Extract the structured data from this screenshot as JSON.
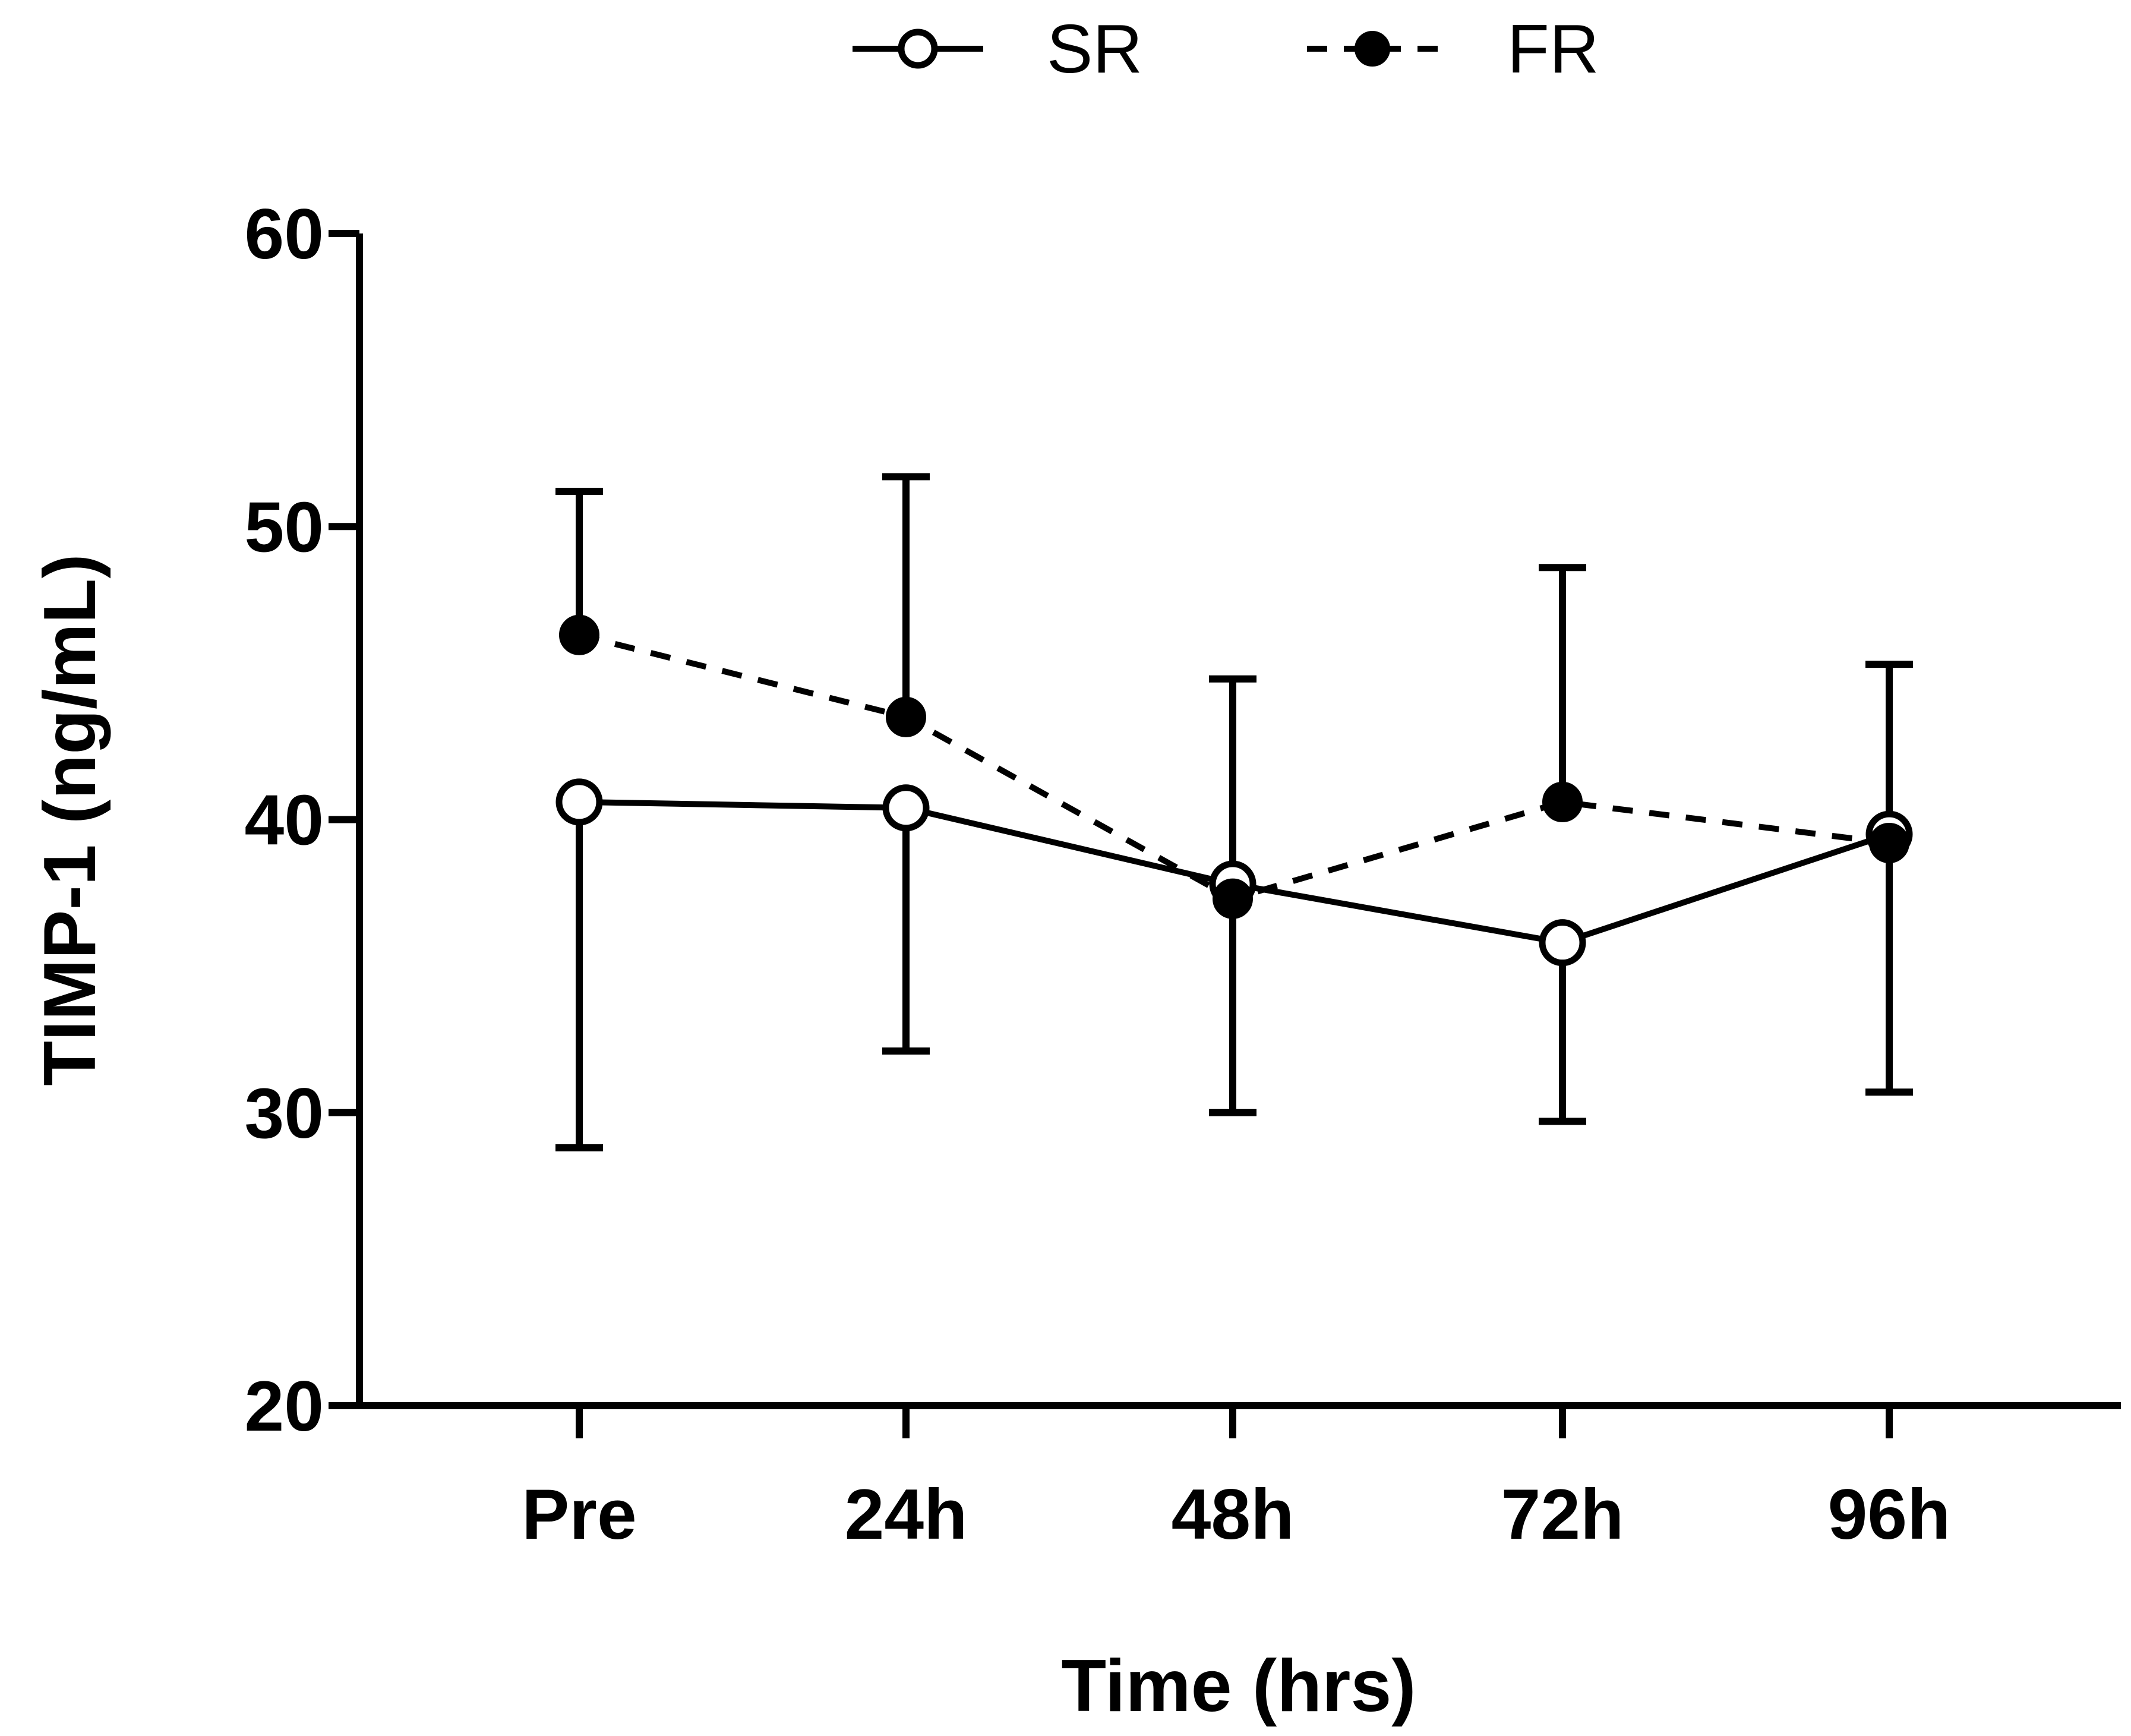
{
  "chart_data": {
    "type": "line",
    "title": "",
    "xlabel": "Time (hrs)",
    "ylabel": "TIMP-1 (ng/mL)",
    "ylim": [
      20,
      60
    ],
    "yticks": [
      20,
      30,
      40,
      50,
      60
    ],
    "categories": [
      "Pre",
      "24h",
      "48h",
      "72h",
      "96h"
    ],
    "legend_position": "top-center",
    "grid": false,
    "series": [
      {
        "name": "SR",
        "style": "solid",
        "marker": "open-circle",
        "values": [
          40.6,
          40.4,
          37.8,
          35.8,
          39.5
        ],
        "error_upper": [
          null,
          null,
          null,
          null,
          null
        ],
        "error_lower": [
          28.8,
          32.1,
          30.0,
          29.7,
          30.7
        ]
      },
      {
        "name": "FR",
        "style": "dashed",
        "marker": "filled-circle",
        "values": [
          46.3,
          43.5,
          37.3,
          40.6,
          39.2
        ],
        "error_upper": [
          51.2,
          51.7,
          44.8,
          48.6,
          45.3
        ],
        "error_lower": [
          null,
          null,
          null,
          null,
          null
        ]
      }
    ]
  }
}
